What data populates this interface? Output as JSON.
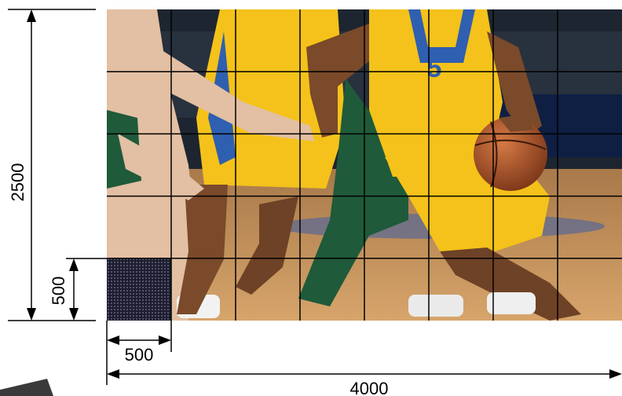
{
  "diagram": {
    "panel_grid": {
      "columns": 8,
      "rows": 5
    },
    "colors": {
      "grid_line": "#000000",
      "dimension_line": "#000000",
      "module_sample": "#2b2b44",
      "court_floor": "#c8935a",
      "jersey_yellow": "#f4c21a",
      "jersey_blue": "#2f5fb0",
      "jersey_green": "#1f5a3a",
      "arena_dark": "#1d2530",
      "ball_orange": "#b5582a"
    },
    "scene": {
      "description_icon": "basketball-players-photo",
      "jersey_number": "5"
    },
    "dimensions": {
      "total_height": "2500",
      "module_height": "500",
      "module_width": "500",
      "total_width": "4000"
    }
  }
}
